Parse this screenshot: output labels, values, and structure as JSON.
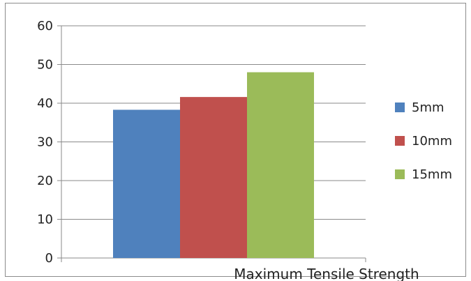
{
  "chart_data": {
    "type": "bar",
    "categories": [
      "Maximum Tensile Strength"
    ],
    "series": [
      {
        "name": "5mm",
        "values": [
          38.3
        ],
        "color": "#4f81bd"
      },
      {
        "name": "10mm",
        "values": [
          41.6
        ],
        "color": "#c0504d"
      },
      {
        "name": "15mm",
        "values": [
          48.0
        ],
        "color": "#9bbb59"
      }
    ],
    "yticks": [
      "0",
      "10",
      "20",
      "30",
      "40",
      "50",
      "60"
    ],
    "ylim": [
      0,
      60
    ],
    "grid": true,
    "legend_position": "right",
    "title": "",
    "xlabel": "",
    "ylabel": ""
  }
}
